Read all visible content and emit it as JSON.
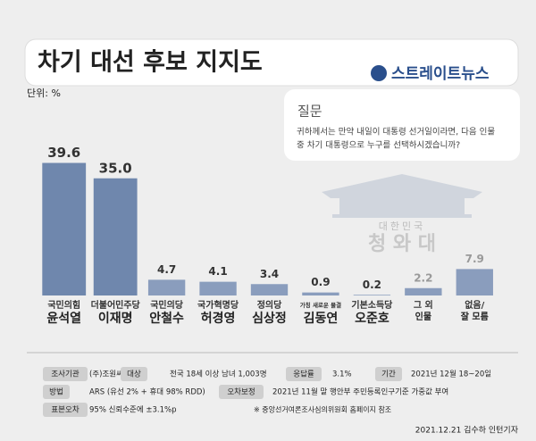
{
  "chart_data": {
    "type": "bar",
    "title": "차기 대선 후보 지지도",
    "brand": "스트레이트뉴스",
    "unit": "단위: %",
    "question_title": "질문",
    "question": [
      "귀하께서는 만약 내일이 대통령 선거일이라면, 다음 인물",
      "중 차기 대통령으로 누구를 선택하시겠습니까?"
    ],
    "watermark": [
      "대한민국",
      "청 와 대"
    ],
    "parties": [
      "국민의힘",
      "더불어민주당",
      "국민의당",
      "국가혁명당",
      "정의당",
      "가칭 새로운 물결",
      "기본소득당",
      "그 외",
      "없음/"
    ],
    "categories": [
      "윤석열",
      "이재명",
      "안철수",
      "허경영",
      "심상정",
      "김동연",
      "오준호",
      "인물",
      "잘 모름"
    ],
    "values": [
      39.6,
      35.0,
      4.7,
      4.1,
      3.4,
      0.9,
      0.2,
      2.2,
      7.9
    ],
    "value_labels": [
      "39.6",
      "35.0",
      "4.7",
      "4.1",
      "3.4",
      "0.9",
      "0.2",
      "2.2",
      "7.9"
    ],
    "colors": [
      "#6f87ad",
      "#6f87ad",
      "#8a9dbd",
      "#8a9dbd",
      "#8a9dbd",
      "#8a9dbd",
      "#8a9dbd",
      "#8a9dbd",
      "#8a9dbd"
    ],
    "ylim": [
      0,
      40
    ],
    "footer": [
      [
        "조사기관",
        "(주)조원씨앤아이",
        "대상",
        "전국 18세 이상 남녀 1,003명",
        "응답률",
        "3.1%",
        "기간",
        "2021년 12월 18~20일"
      ],
      [
        "방법",
        "ARS (유선 2% + 휴대 98% RDD)",
        "오차보정",
        "2021년 11월 말 행안부 주민등록인구기준 가중값 부여"
      ],
      [
        "표본오차",
        "95% 신뢰수준에 ±3.1%p"
      ]
    ],
    "note": "※ 중앙선거여론조사심의위원회 홈페이지 참조",
    "credit": "2021.12.21 김수하 인턴기자"
  }
}
